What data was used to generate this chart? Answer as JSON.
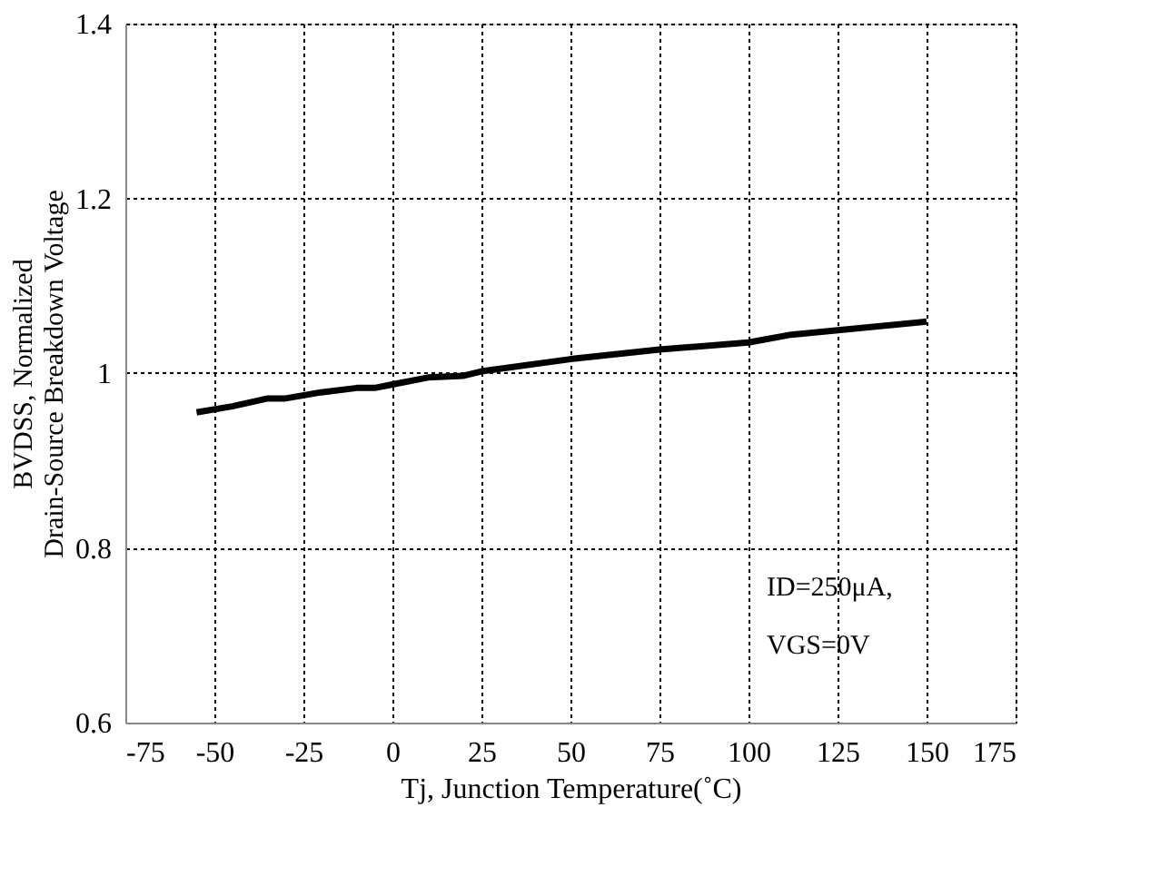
{
  "chart_data": {
    "type": "line",
    "xlabel": "Tj, Junction Temperature(˚C)",
    "ylabel": "BVDSS, Normalized Drain-Source Breakdown Voltage",
    "x": [
      -55,
      -45,
      -35,
      -30,
      -20,
      -10,
      -5,
      0,
      10,
      20,
      25,
      50,
      75,
      100,
      112,
      150
    ],
    "series": [
      {
        "color": "#000000",
        "values": [
          0.955,
          0.962,
          0.971,
          0.971,
          0.978,
          0.983,
          0.983,
          0.987,
          0.995,
          0.997,
          1.002,
          1.016,
          1.027,
          1.035,
          1.044,
          1.059
        ]
      }
    ],
    "xlim": [
      -75,
      175
    ],
    "xticks": [
      -75,
      -50,
      -25,
      0,
      25,
      50,
      75,
      100,
      125,
      150,
      175
    ],
    "ylim": [
      0.6,
      1.4
    ],
    "yticks": [
      0.6,
      0.8,
      1,
      1.2,
      1.4
    ],
    "grid": true,
    "marker": "none",
    "line_style": "solid",
    "annotations": [
      "ID=250μA,",
      "VGS=0V"
    ]
  }
}
